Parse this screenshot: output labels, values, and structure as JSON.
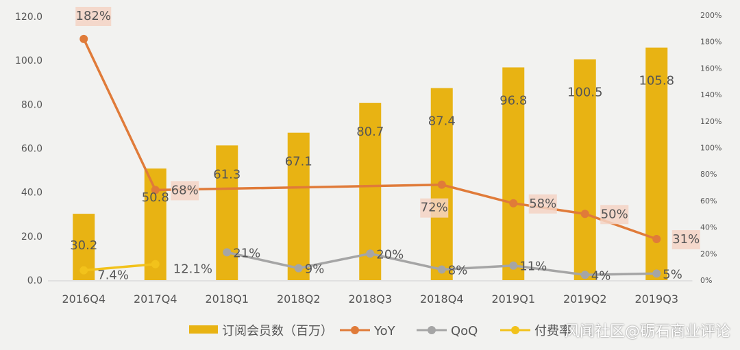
{
  "chart_data": {
    "type": "bar",
    "categories": [
      "2016Q4",
      "2017Q4",
      "2018Q1",
      "2018Q2",
      "2018Q3",
      "2018Q4",
      "2019Q1",
      "2019Q2",
      "2019Q3"
    ],
    "ylim": [
      0,
      120
    ],
    "y2lim": [
      0,
      200
    ],
    "yticks": [
      "0.0",
      "20.0",
      "40.0",
      "60.0",
      "80.0",
      "100.0",
      "120.0"
    ],
    "y2ticks": [
      "0%",
      "20%",
      "40%",
      "60%",
      "80%",
      "100%",
      "120%",
      "140%",
      "160%",
      "180%",
      "200%"
    ],
    "series": [
      {
        "name": "订阅会员数（百万）",
        "type": "bar",
        "axis": "left",
        "color": "#e8b313",
        "values": [
          30.2,
          50.8,
          61.3,
          67.1,
          80.7,
          87.4,
          96.8,
          100.5,
          105.8
        ],
        "labels": [
          "30.2",
          "50.8",
          "61.3",
          "67.1",
          "80.7",
          "87.4",
          "96.8",
          "100.5",
          "105.8"
        ]
      },
      {
        "name": "YoY",
        "type": "line",
        "axis": "right",
        "color": "#e07b39",
        "values": [
          182,
          68,
          null,
          null,
          null,
          72,
          58,
          50,
          31
        ],
        "labels": [
          "182%",
          "68%",
          "",
          "",
          "",
          "72%",
          "58%",
          "50%",
          "31%"
        ]
      },
      {
        "name": "QoQ",
        "type": "line",
        "axis": "right",
        "color": "#a5a5a5",
        "values": [
          null,
          null,
          21,
          9,
          20,
          8,
          11,
          4,
          5
        ],
        "labels": [
          "",
          "",
          "21%",
          "9%",
          "20%",
          "8%",
          "11%",
          "4%",
          "5%"
        ]
      },
      {
        "name": "付费率",
        "type": "line",
        "axis": "right",
        "color": "#f2c21b",
        "values": [
          7.4,
          12.1,
          null,
          null,
          null,
          null,
          null,
          null,
          null
        ],
        "labels": [
          "7.4%",
          "12.1%",
          "",
          "",
          "",
          "",
          "",
          "",
          ""
        ]
      }
    ],
    "legend_position": "bottom",
    "grid": false
  },
  "watermark": "风闻社区@砺石商业评论"
}
